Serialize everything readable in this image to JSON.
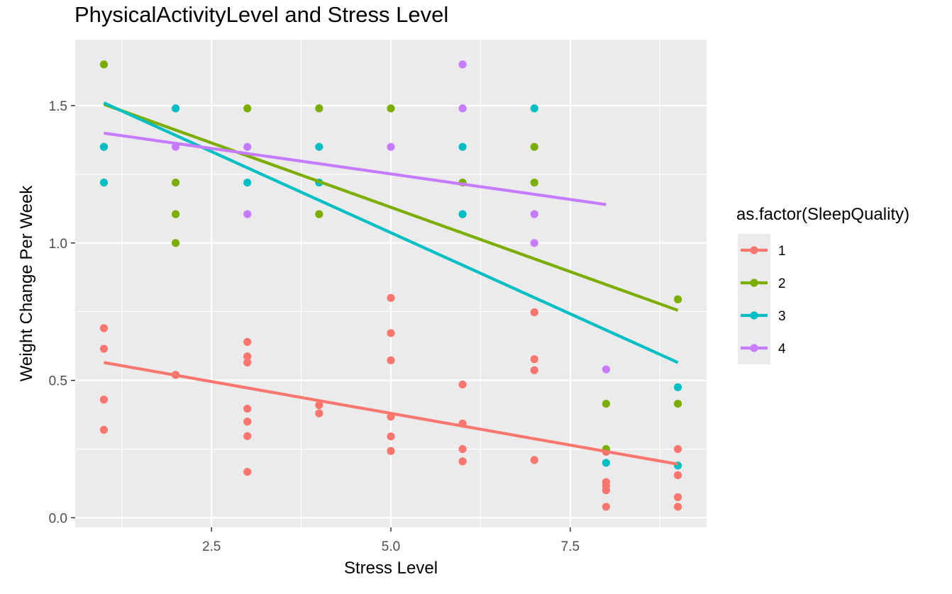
{
  "chart_data": {
    "type": "scatter",
    "title": "PhysicalActivityLevel and Stress Level",
    "xlabel": "Stress Level",
    "ylabel": "Weight Change Per Week",
    "xlim": [
      0.6,
      9.4
    ],
    "ylim": [
      -0.035,
      1.74
    ],
    "x_ticks": [
      2.5,
      5.0,
      7.5
    ],
    "x_tick_labels": [
      "2.5",
      "5.0",
      "7.5"
    ],
    "y_ticks": [
      0.0,
      0.5,
      1.0,
      1.5
    ],
    "y_tick_labels": [
      "0.0",
      "0.5",
      "1.0",
      "1.5"
    ],
    "grid": true,
    "legend_title": "as.factor(SleepQuality)",
    "legend_position": "right",
    "series": [
      {
        "name": "1",
        "color": "#F8766D",
        "points": [
          [
            1,
            0.69
          ],
          [
            1,
            0.615
          ],
          [
            1,
            0.43
          ],
          [
            1,
            0.32
          ],
          [
            2,
            0.52
          ],
          [
            3,
            0.64
          ],
          [
            3,
            0.587
          ],
          [
            3,
            0.565
          ],
          [
            3,
            0.397
          ],
          [
            3,
            0.35
          ],
          [
            3,
            0.297
          ],
          [
            3,
            0.167
          ],
          [
            4,
            0.41
          ],
          [
            4,
            0.38
          ],
          [
            5,
            0.8
          ],
          [
            5,
            0.672
          ],
          [
            5,
            0.573
          ],
          [
            5,
            0.368
          ],
          [
            5,
            0.296
          ],
          [
            5,
            0.243
          ],
          [
            6,
            0.485
          ],
          [
            6,
            0.343
          ],
          [
            6,
            0.25
          ],
          [
            6,
            0.205
          ],
          [
            7,
            0.748
          ],
          [
            7,
            0.577
          ],
          [
            7,
            0.537
          ],
          [
            7,
            0.21
          ],
          [
            8,
            0.24
          ],
          [
            8,
            0.13
          ],
          [
            8,
            0.115
          ],
          [
            8,
            0.1
          ],
          [
            8,
            0.04
          ],
          [
            9,
            0.25
          ],
          [
            9,
            0.155
          ],
          [
            9,
            0.075
          ],
          [
            9,
            0.04
          ]
        ],
        "fit": [
          [
            1,
            0.565
          ],
          [
            9,
            0.195
          ]
        ]
      },
      {
        "name": "2",
        "color": "#7CAE00",
        "points": [
          [
            1,
            1.65
          ],
          [
            1,
            1.35
          ],
          [
            2,
            1.22
          ],
          [
            2,
            1.105
          ],
          [
            2,
            1.0
          ],
          [
            3,
            1.49
          ],
          [
            4,
            1.49
          ],
          [
            4,
            1.105
          ],
          [
            5,
            1.49
          ],
          [
            6,
            1.22
          ],
          [
            7,
            1.35
          ],
          [
            7,
            1.22
          ],
          [
            8,
            0.415
          ],
          [
            8,
            0.25
          ],
          [
            9,
            0.795
          ],
          [
            9,
            0.415
          ]
        ],
        "fit": [
          [
            1,
            1.505
          ],
          [
            9,
            0.755
          ]
        ]
      },
      {
        "name": "3",
        "color": "#00BFC4",
        "points": [
          [
            1,
            1.35
          ],
          [
            1,
            1.22
          ],
          [
            2,
            1.49
          ],
          [
            3,
            1.22
          ],
          [
            4,
            1.35
          ],
          [
            4,
            1.22
          ],
          [
            6,
            1.35
          ],
          [
            6,
            1.105
          ],
          [
            7,
            1.49
          ],
          [
            8,
            0.2
          ],
          [
            9,
            0.475
          ],
          [
            9,
            0.19
          ]
        ],
        "fit": [
          [
            1,
            1.51
          ],
          [
            9,
            0.565
          ]
        ]
      },
      {
        "name": "4",
        "color": "#C77CFF",
        "points": [
          [
            2,
            1.35
          ],
          [
            3,
            1.35
          ],
          [
            3,
            1.105
          ],
          [
            5,
            1.35
          ],
          [
            6,
            1.65
          ],
          [
            6,
            1.49
          ],
          [
            7,
            1.105
          ],
          [
            7,
            1.0
          ],
          [
            8,
            0.54
          ]
        ],
        "fit": [
          [
            1,
            1.4
          ],
          [
            8,
            1.14
          ]
        ]
      }
    ]
  }
}
